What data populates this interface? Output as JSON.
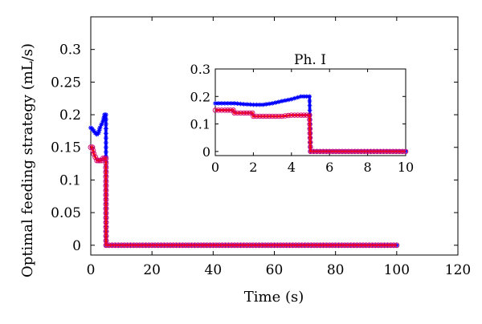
{
  "chart_data": [
    {
      "type": "line",
      "title": "",
      "xlabel": "Time (s)",
      "ylabel": "Optimal feeding strategy (mL/s)",
      "xlim": [
        0,
        120
      ],
      "ylim": [
        -0.015,
        0.35
      ],
      "xticks": [
        "0",
        "20",
        "40",
        "60",
        "80",
        "100",
        "120"
      ],
      "yticks": [
        "0",
        "0.05",
        "0.1",
        "0.15",
        "0.2",
        "0.25",
        "0.3"
      ],
      "grid": false,
      "series": [
        {
          "color": "#0000ff",
          "marker": "star",
          "x": [
            0,
            0.5,
            1,
            1.5,
            2,
            2.5,
            3,
            3.5,
            4,
            4.5,
            4.95,
            5,
            10,
            20,
            30,
            40,
            50,
            60,
            70,
            80,
            90,
            100
          ],
          "y": [
            0.18,
            0.178,
            0.175,
            0.172,
            0.17,
            0.172,
            0.18,
            0.185,
            0.19,
            0.2,
            0.2,
            0,
            0,
            0,
            0,
            0,
            0,
            0,
            0,
            0,
            0,
            0
          ]
        },
        {
          "color": "#ff0000",
          "marker": "circle",
          "x": [
            0,
            0.5,
            1,
            1.5,
            2,
            2.5,
            3,
            3.5,
            4,
            4.5,
            4.95,
            5,
            10,
            20,
            30,
            40,
            50,
            60,
            70,
            80,
            90,
            100
          ],
          "y": [
            0.15,
            0.15,
            0.14,
            0.135,
            0.13,
            0.13,
            0.13,
            0.13,
            0.133,
            0.133,
            0.133,
            0,
            0,
            0,
            0,
            0,
            0,
            0,
            0,
            0,
            0,
            0
          ]
        }
      ]
    },
    {
      "type": "line",
      "title": "Ph. I",
      "xlabel": "",
      "ylabel": "",
      "xlim": [
        0,
        10
      ],
      "ylim": [
        -0.015,
        0.3
      ],
      "xticks": [
        "0",
        "2",
        "4",
        "6",
        "8",
        "10"
      ],
      "yticks": [
        "0",
        "0.1",
        "0.2",
        "0.3"
      ],
      "grid": false,
      "series": [
        {
          "color": "#0000ff",
          "marker": "star",
          "x": [
            0,
            0.5,
            1,
            1.5,
            2,
            2.5,
            3,
            3.5,
            4,
            4.5,
            4.95,
            5,
            6,
            7,
            8,
            9,
            10
          ],
          "y": [
            0.175,
            0.175,
            0.175,
            0.172,
            0.17,
            0.17,
            0.175,
            0.183,
            0.19,
            0.2,
            0.2,
            0,
            0,
            0,
            0,
            0,
            0
          ]
        },
        {
          "color": "#ff0000",
          "marker": "circle",
          "x": [
            0,
            0.5,
            0.95,
            1,
            1.5,
            1.95,
            2,
            2.5,
            3,
            3.5,
            4,
            4.5,
            4.95,
            5,
            6,
            7,
            8,
            9,
            10
          ],
          "y": [
            0.15,
            0.15,
            0.15,
            0.14,
            0.14,
            0.14,
            0.128,
            0.128,
            0.128,
            0.128,
            0.132,
            0.132,
            0.132,
            0,
            0,
            0,
            0,
            0,
            0
          ]
        }
      ]
    }
  ]
}
